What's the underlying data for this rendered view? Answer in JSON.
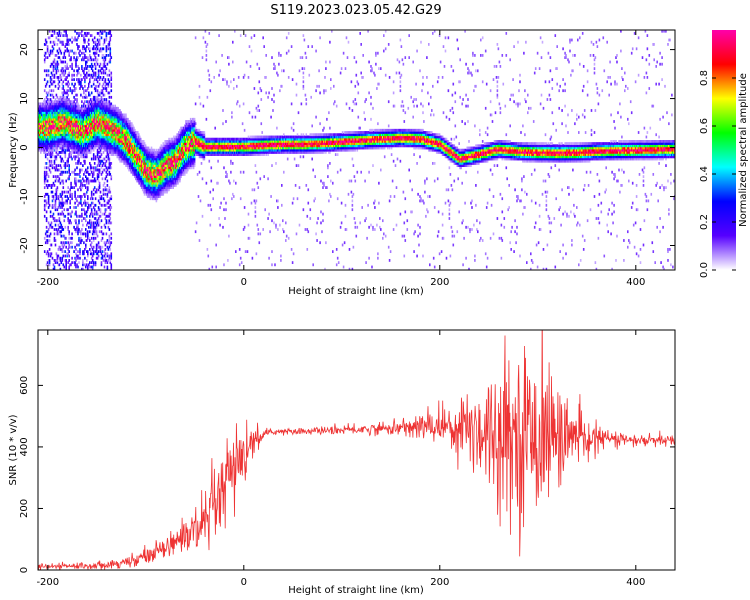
{
  "title": "S119.2023.023.05.42.G29",
  "chart_data": [
    {
      "type": "heatmap",
      "xlabel": "Height of straight line (km)",
      "ylabel": "Frequency (Hz)",
      "xlim": [
        -210,
        440
      ],
      "ylim": [
        -25,
        24
      ],
      "xticks": [
        -200,
        0,
        200,
        400
      ],
      "yticks": [
        -20,
        -10,
        0,
        10,
        20
      ],
      "ridge": {
        "x": [
          -200,
          -185,
          -175,
          -165,
          -150,
          -140,
          -130,
          -120,
          -110,
          -100,
          -90,
          -80,
          -70,
          -60,
          -50,
          -40,
          -20,
          0,
          20,
          40,
          60,
          80,
          100,
          120,
          140,
          160,
          180,
          200,
          210,
          220,
          230,
          240,
          260,
          280,
          300,
          320,
          340,
          360,
          380,
          400,
          420,
          440
        ],
        "freq": [
          4,
          5,
          4,
          3,
          5,
          4,
          3,
          1,
          -2,
          -5,
          -6,
          -4,
          -3,
          0,
          1,
          0,
          0,
          0,
          0.3,
          0.5,
          0.5,
          0.7,
          1,
          1.3,
          1.6,
          1.8,
          1.6,
          0.5,
          -1,
          -2.5,
          -2,
          -1.5,
          -0.5,
          -1,
          -1.2,
          -1.3,
          -1.2,
          -0.9,
          -0.8,
          -0.7,
          -0.6,
          -0.5
        ]
      },
      "colorbar": {
        "label": "Normalized spectral amplitude",
        "range": [
          0,
          1
        ],
        "ticks": [
          0.0,
          0.2,
          0.4,
          0.6,
          0.8
        ],
        "tick_labels": [
          "0.0",
          "0.2",
          "0.4",
          "0.6",
          "0.8"
        ],
        "colormap": [
          "#ffffff",
          "#5500ff",
          "#0000ff",
          "#00ffff",
          "#00ff00",
          "#ffff00",
          "#ff0000",
          "#ff00aa"
        ]
      }
    },
    {
      "type": "line",
      "xlabel": "Height of straight line (km)",
      "ylabel": "SNR (10 * v/v)",
      "xlim": [
        -210,
        440
      ],
      "ylim": [
        0,
        780
      ],
      "xticks": [
        -200,
        0,
        200,
        400
      ],
      "yticks": [
        0,
        200,
        400,
        600
      ],
      "color": "#ee3333",
      "envelope": {
        "x": [
          -210,
          -150,
          -120,
          -100,
          -80,
          -60,
          -40,
          -30,
          -20,
          -10,
          0,
          10,
          20,
          30,
          50,
          100,
          150,
          200,
          220,
          240,
          260,
          280,
          290,
          300,
          320,
          340,
          360,
          380,
          400,
          420,
          440
        ],
        "mean": [
          10,
          15,
          25,
          45,
          80,
          110,
          140,
          200,
          260,
          320,
          370,
          410,
          440,
          450,
          450,
          455,
          460,
          470,
          470,
          460,
          450,
          440,
          440,
          440,
          440,
          430,
          430,
          425,
          420,
          420,
          420
        ],
        "spread": [
          10,
          12,
          18,
          25,
          35,
          60,
          110,
          130,
          140,
          150,
          130,
          50,
          15,
          10,
          10,
          15,
          20,
          60,
          110,
          170,
          230,
          260,
          280,
          260,
          180,
          80,
          40,
          25,
          20,
          20,
          20
        ]
      }
    }
  ]
}
